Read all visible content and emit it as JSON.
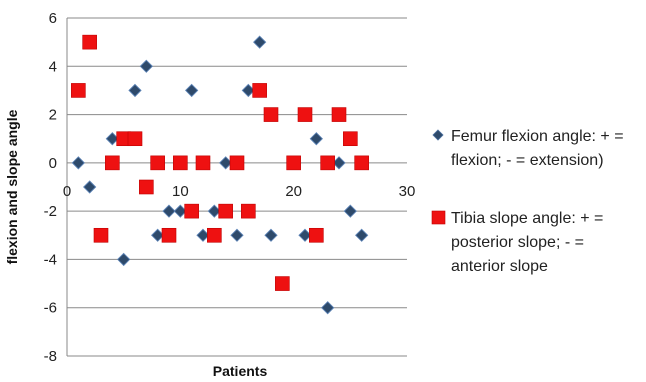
{
  "chart_data": {
    "type": "scatter",
    "xlabel": "Patients",
    "ylabel": "flexion and slope angle",
    "xlim": [
      0,
      30
    ],
    "ylim": [
      -8,
      6
    ],
    "xticks": [
      "0",
      "10",
      "20",
      "30"
    ],
    "yticks": [
      "6",
      "4",
      "2",
      "0",
      "-2",
      "-4",
      "-6",
      "-8"
    ],
    "grid": "horizontal",
    "legend_position": "right",
    "series": [
      {
        "name": "Femur flexion angle: + = flexion; - = extension)",
        "legend_lines": [
          "Femur flexion angle: + =",
          "flexion; - = extension)"
        ],
        "marker": "diamond",
        "color": "#2E4A6B",
        "x": [
          1,
          2,
          3,
          4,
          5,
          6,
          7,
          8,
          9,
          10,
          11,
          12,
          13,
          14,
          15,
          16,
          17,
          18,
          19,
          20,
          21,
          22,
          23,
          24,
          25,
          26
        ],
        "y": [
          0,
          -1,
          -3,
          1,
          -4,
          3,
          4,
          -3,
          -2,
          -2,
          3,
          -3,
          -2,
          0,
          -3,
          3,
          5,
          -3,
          -5,
          0,
          -3,
          1,
          -6,
          0,
          -2,
          -3
        ]
      },
      {
        "name": "Tibia slope angle: + = posterior slope; - = anterior slope",
        "legend_lines": [
          "Tibia slope angle: + =",
          "posterior slope; - =",
          "anterior slope"
        ],
        "marker": "square",
        "color": "#EE1111",
        "x": [
          1,
          2,
          3,
          4,
          5,
          6,
          7,
          8,
          9,
          10,
          11,
          12,
          13,
          14,
          15,
          16,
          17,
          18,
          19,
          20,
          21,
          22,
          23,
          24,
          25,
          26
        ],
        "y": [
          3,
          5,
          -3,
          0,
          1,
          1,
          -1,
          0,
          -3,
          0,
          -2,
          0,
          -3,
          -2,
          0,
          -2,
          3,
          2,
          -5,
          0,
          2,
          -3,
          0,
          2,
          1,
          0
        ]
      }
    ]
  }
}
